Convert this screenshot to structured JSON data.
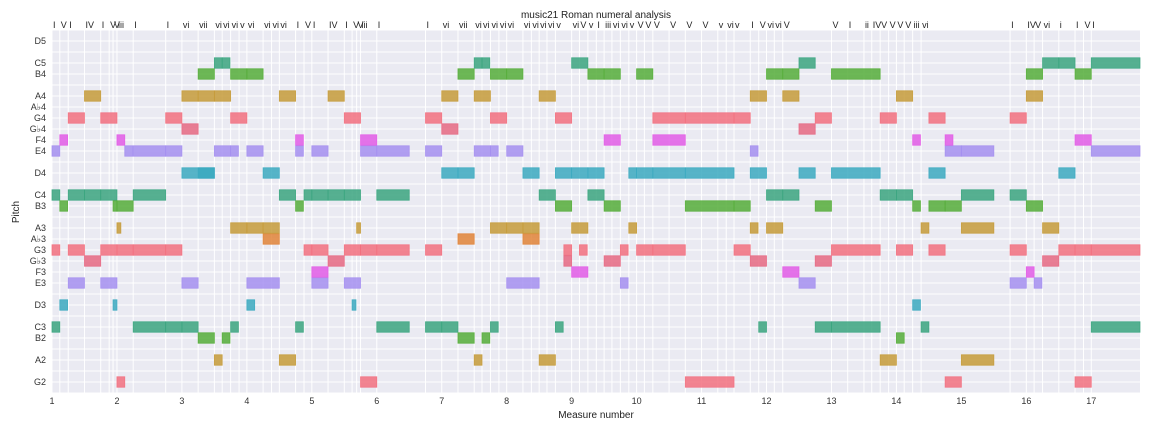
{
  "chart_data": {
    "type": "piano-roll",
    "title": "music21 Roman numeral analysis",
    "xlabel": "Measure number",
    "ylabel": "Pitch",
    "xlim": [
      1,
      17.75
    ],
    "x_ticks": [
      1,
      2,
      3,
      4,
      5,
      6,
      7,
      8,
      9,
      10,
      11,
      12,
      13,
      14,
      15,
      16,
      17
    ],
    "y_ticks": [
      {
        "label": "G2",
        "midi": 43
      },
      {
        "label": "A2",
        "midi": 45
      },
      {
        "label": "B2",
        "midi": 47
      },
      {
        "label": "C3",
        "midi": 48
      },
      {
        "label": "D3",
        "midi": 50
      },
      {
        "label": "E3",
        "midi": 52
      },
      {
        "label": "F3",
        "midi": 53
      },
      {
        "label": "G♭3",
        "midi": 54
      },
      {
        "label": "G3",
        "midi": 55
      },
      {
        "label": "A♭3",
        "midi": 56
      },
      {
        "label": "A3",
        "midi": 57
      },
      {
        "label": "B3",
        "midi": 59
      },
      {
        "label": "C4",
        "midi": 60
      },
      {
        "label": "D4",
        "midi": 62
      },
      {
        "label": "E4",
        "midi": 64
      },
      {
        "label": "F4",
        "midi": 65
      },
      {
        "label": "G♭4",
        "midi": 66
      },
      {
        "label": "G4",
        "midi": 67
      },
      {
        "label": "A♭4",
        "midi": 68
      },
      {
        "label": "A4",
        "midi": 69
      },
      {
        "label": "B4",
        "midi": 71
      },
      {
        "label": "C5",
        "midi": 72
      },
      {
        "label": "D5",
        "midi": 74
      }
    ],
    "ylim": [
      42,
      75
    ],
    "pitch_colors": {
      "0": "#3ba57f",
      "2": "#3ba9c0",
      "4": "#a48ff0",
      "5": "#e25ce6",
      "6": "#e66883",
      "7": "#f2707f",
      "8": "#e18438",
      "9": "#c59b3a",
      "11": "#55ad3a"
    },
    "roman_numerals": [
      {
        "x": 1.0,
        "label": "I"
      },
      {
        "x": 1.12,
        "label": "V"
      },
      {
        "x": 1.25,
        "label": "I"
      },
      {
        "x": 1.5,
        "label": "IV"
      },
      {
        "x": 1.75,
        "label": "I"
      },
      {
        "x": 1.88,
        "label": "V"
      },
      {
        "x": 1.94,
        "label": "V"
      },
      {
        "x": 2.0,
        "label": "iii"
      },
      {
        "x": 2.25,
        "label": "I"
      },
      {
        "x": 2.75,
        "label": "I"
      },
      {
        "x": 3.0,
        "label": "vi"
      },
      {
        "x": 3.25,
        "label": "vii"
      },
      {
        "x": 3.5,
        "label": "vi"
      },
      {
        "x": 3.62,
        "label": "vi"
      },
      {
        "x": 3.75,
        "label": "vi"
      },
      {
        "x": 3.88,
        "label": "v"
      },
      {
        "x": 4.0,
        "label": "vi"
      },
      {
        "x": 4.25,
        "label": "vi"
      },
      {
        "x": 4.38,
        "label": "vi"
      },
      {
        "x": 4.5,
        "label": "vi"
      },
      {
        "x": 4.75,
        "label": "I"
      },
      {
        "x": 4.88,
        "label": "V"
      },
      {
        "x": 5.0,
        "label": "I"
      },
      {
        "x": 5.25,
        "label": "IV"
      },
      {
        "x": 5.5,
        "label": "I"
      },
      {
        "x": 5.62,
        "label": "V"
      },
      {
        "x": 5.69,
        "label": "V"
      },
      {
        "x": 5.75,
        "label": "iii"
      },
      {
        "x": 6.0,
        "label": "I"
      },
      {
        "x": 6.75,
        "label": "I"
      },
      {
        "x": 7.0,
        "label": "vi"
      },
      {
        "x": 7.25,
        "label": "vii"
      },
      {
        "x": 7.5,
        "label": "vi"
      },
      {
        "x": 7.62,
        "label": "vi"
      },
      {
        "x": 7.75,
        "label": "vi"
      },
      {
        "x": 7.88,
        "label": "vi"
      },
      {
        "x": 8.0,
        "label": "vi"
      },
      {
        "x": 8.25,
        "label": "vi"
      },
      {
        "x": 8.38,
        "label": "vi"
      },
      {
        "x": 8.5,
        "label": "vi"
      },
      {
        "x": 8.62,
        "label": "vi"
      },
      {
        "x": 8.75,
        "label": "v"
      },
      {
        "x": 9.0,
        "label": "vi"
      },
      {
        "x": 9.12,
        "label": "V"
      },
      {
        "x": 9.25,
        "label": "v"
      },
      {
        "x": 9.38,
        "label": "I"
      },
      {
        "x": 9.5,
        "label": "iii"
      },
      {
        "x": 9.62,
        "label": "vi"
      },
      {
        "x": 9.75,
        "label": "vi"
      },
      {
        "x": 9.88,
        "label": "v"
      },
      {
        "x": 10.0,
        "label": "V"
      },
      {
        "x": 10.12,
        "label": "V"
      },
      {
        "x": 10.25,
        "label": "V"
      },
      {
        "x": 10.5,
        "label": "V"
      },
      {
        "x": 10.75,
        "label": "V"
      },
      {
        "x": 11.0,
        "label": "V"
      },
      {
        "x": 11.25,
        "label": "v"
      },
      {
        "x": 11.38,
        "label": "vi"
      },
      {
        "x": 11.5,
        "label": "v"
      },
      {
        "x": 11.75,
        "label": "I"
      },
      {
        "x": 11.88,
        "label": "V"
      },
      {
        "x": 12.0,
        "label": "vi"
      },
      {
        "x": 12.12,
        "label": "vi"
      },
      {
        "x": 12.25,
        "label": "V"
      },
      {
        "x": 13.0,
        "label": "V"
      },
      {
        "x": 13.25,
        "label": "I"
      },
      {
        "x": 13.5,
        "label": "ii"
      },
      {
        "x": 13.62,
        "label": "IV"
      },
      {
        "x": 13.75,
        "label": "V"
      },
      {
        "x": 13.88,
        "label": "V"
      },
      {
        "x": 14.0,
        "label": "V"
      },
      {
        "x": 14.12,
        "label": "V"
      },
      {
        "x": 14.25,
        "label": "iii"
      },
      {
        "x": 14.38,
        "label": "vi"
      },
      {
        "x": 15.75,
        "label": "I"
      },
      {
        "x": 16.0,
        "label": "IV"
      },
      {
        "x": 16.12,
        "label": "V"
      },
      {
        "x": 16.25,
        "label": "vi"
      },
      {
        "x": 16.5,
        "label": "i"
      },
      {
        "x": 16.75,
        "label": "I"
      },
      {
        "x": 16.88,
        "label": "V"
      },
      {
        "x": 17.0,
        "label": "I"
      }
    ],
    "notes": [
      [
        1.0,
        0.12,
        60
      ],
      [
        1.0,
        0.12,
        48
      ],
      [
        1.0,
        0.12,
        55
      ],
      [
        1.0,
        0.12,
        64
      ],
      [
        1.12,
        0.12,
        50
      ],
      [
        1.12,
        0.12,
        59
      ],
      [
        1.12,
        0.12,
        65
      ],
      [
        1.25,
        0.25,
        52
      ],
      [
        1.25,
        0.25,
        60
      ],
      [
        1.25,
        0.25,
        67
      ],
      [
        1.25,
        0.25,
        55
      ],
      [
        1.5,
        0.25,
        54
      ],
      [
        1.5,
        0.25,
        60
      ],
      [
        1.5,
        0.25,
        69
      ],
      [
        1.75,
        0.25,
        52
      ],
      [
        1.75,
        0.25,
        60
      ],
      [
        1.75,
        0.25,
        67
      ],
      [
        1.75,
        0.25,
        55
      ],
      [
        1.94,
        0.06,
        50
      ],
      [
        1.94,
        0.06,
        59
      ],
      [
        2.0,
        0.06,
        57
      ],
      [
        2.0,
        0.12,
        65
      ],
      [
        2.0,
        0.12,
        43
      ],
      [
        2.0,
        0.25,
        55
      ],
      [
        2.0,
        0.25,
        59
      ],
      [
        2.12,
        0.12,
        64
      ],
      [
        2.25,
        0.5,
        48
      ],
      [
        2.25,
        0.5,
        55
      ],
      [
        2.25,
        0.5,
        60
      ],
      [
        2.25,
        0.5,
        64
      ],
      [
        2.75,
        0.25,
        48
      ],
      [
        2.75,
        0.25,
        55
      ],
      [
        2.75,
        0.25,
        64
      ],
      [
        2.75,
        0.25,
        67
      ],
      [
        3.0,
        0.25,
        48
      ],
      [
        3.0,
        0.25,
        52
      ],
      [
        3.0,
        0.5,
        62
      ],
      [
        3.0,
        0.25,
        69
      ],
      [
        3.0,
        0.25,
        66
      ],
      [
        3.25,
        0.25,
        47
      ],
      [
        3.25,
        0.25,
        62
      ],
      [
        3.25,
        0.25,
        69
      ],
      [
        3.25,
        0.25,
        71
      ],
      [
        3.5,
        0.12,
        45
      ],
      [
        3.5,
        0.25,
        64
      ],
      [
        3.5,
        0.25,
        69
      ],
      [
        3.5,
        0.12,
        72
      ],
      [
        3.62,
        0.12,
        47
      ],
      [
        3.62,
        0.12,
        72
      ],
      [
        3.75,
        0.12,
        64
      ],
      [
        3.75,
        0.25,
        57
      ],
      [
        3.75,
        0.25,
        67
      ],
      [
        3.75,
        0.25,
        71
      ],
      [
        3.75,
        0.12,
        48
      ],
      [
        4.0,
        0.12,
        50
      ],
      [
        4.0,
        0.25,
        57
      ],
      [
        4.0,
        0.5,
        52
      ],
      [
        4.0,
        0.25,
        64
      ],
      [
        4.0,
        0.25,
        71
      ],
      [
        4.25,
        0.25,
        56
      ],
      [
        4.25,
        0.25,
        57
      ],
      [
        4.25,
        0.25,
        62
      ],
      [
        4.5,
        0.25,
        45
      ],
      [
        4.5,
        0.25,
        60
      ],
      [
        4.5,
        0.25,
        69
      ],
      [
        4.75,
        0.12,
        48
      ],
      [
        4.75,
        0.12,
        59
      ],
      [
        4.75,
        0.12,
        64
      ],
      [
        4.75,
        0.12,
        65
      ],
      [
        4.88,
        0.12,
        60
      ],
      [
        4.88,
        0.12,
        55
      ],
      [
        5.0,
        0.25,
        52
      ],
      [
        5.0,
        0.25,
        55
      ],
      [
        5.0,
        0.25,
        60
      ],
      [
        5.0,
        0.25,
        64
      ],
      [
        5.0,
        0.25,
        53
      ],
      [
        5.25,
        0.25,
        54
      ],
      [
        5.25,
        0.25,
        60
      ],
      [
        5.25,
        0.25,
        69
      ],
      [
        5.5,
        0.25,
        52
      ],
      [
        5.5,
        0.25,
        60
      ],
      [
        5.5,
        0.25,
        67
      ],
      [
        5.5,
        0.25,
        55
      ],
      [
        5.62,
        0.06,
        50
      ],
      [
        5.69,
        0.06,
        57
      ],
      [
        5.75,
        0.25,
        55
      ],
      [
        5.75,
        0.25,
        64
      ],
      [
        5.75,
        0.25,
        65
      ],
      [
        5.75,
        0.25,
        43
      ],
      [
        6.0,
        0.5,
        48
      ],
      [
        6.0,
        0.5,
        55
      ],
      [
        6.0,
        0.5,
        60
      ],
      [
        6.0,
        0.5,
        64
      ],
      [
        6.75,
        0.25,
        48
      ],
      [
        6.75,
        0.25,
        55
      ],
      [
        6.75,
        0.25,
        64
      ],
      [
        6.75,
        0.25,
        67
      ],
      [
        7.0,
        0.25,
        48
      ],
      [
        7.0,
        0.25,
        62
      ],
      [
        7.0,
        0.25,
        69
      ],
      [
        7.0,
        0.25,
        66
      ],
      [
        7.25,
        0.25,
        47
      ],
      [
        7.25,
        0.25,
        62
      ],
      [
        7.25,
        0.25,
        71
      ],
      [
        7.25,
        0.25,
        56
      ],
      [
        7.5,
        0.12,
        45
      ],
      [
        7.5,
        0.25,
        64
      ],
      [
        7.5,
        0.25,
        69
      ],
      [
        7.5,
        0.12,
        72
      ],
      [
        7.62,
        0.12,
        47
      ],
      [
        7.62,
        0.12,
        72
      ],
      [
        7.75,
        0.12,
        64
      ],
      [
        7.75,
        0.25,
        57
      ],
      [
        7.75,
        0.12,
        48
      ],
      [
        7.75,
        0.25,
        67
      ],
      [
        7.75,
        0.25,
        71
      ],
      [
        8.0,
        0.5,
        52
      ],
      [
        8.0,
        0.25,
        57
      ],
      [
        8.0,
        0.25,
        64
      ],
      [
        8.0,
        0.25,
        71
      ],
      [
        8.25,
        0.25,
        56
      ],
      [
        8.25,
        0.25,
        57
      ],
      [
        8.25,
        0.25,
        62
      ],
      [
        8.5,
        0.25,
        45
      ],
      [
        8.5,
        0.25,
        60
      ],
      [
        8.5,
        0.25,
        69
      ],
      [
        8.75,
        0.12,
        48
      ],
      [
        8.75,
        0.25,
        59
      ],
      [
        8.75,
        0.25,
        62
      ],
      [
        8.75,
        0.25,
        67
      ],
      [
        8.88,
        0.12,
        55
      ],
      [
        8.88,
        0.12,
        54
      ],
      [
        9.0,
        0.25,
        53
      ],
      [
        9.0,
        0.25,
        57
      ],
      [
        9.0,
        0.25,
        62
      ],
      [
        9.0,
        0.25,
        72
      ],
      [
        9.12,
        0.12,
        55
      ],
      [
        9.25,
        0.25,
        60
      ],
      [
        9.25,
        0.25,
        62
      ],
      [
        9.25,
        0.25,
        71
      ],
      [
        9.5,
        0.25,
        54
      ],
      [
        9.5,
        0.25,
        59
      ],
      [
        9.5,
        0.25,
        65
      ],
      [
        9.5,
        0.25,
        71
      ],
      [
        9.75,
        0.12,
        55
      ],
      [
        9.75,
        0.12,
        52
      ],
      [
        9.88,
        0.12,
        57
      ],
      [
        9.88,
        0.12,
        62
      ],
      [
        10.0,
        0.25,
        55
      ],
      [
        10.0,
        0.25,
        62
      ],
      [
        10.0,
        0.25,
        71
      ],
      [
        10.25,
        0.5,
        55
      ],
      [
        10.25,
        0.5,
        62
      ],
      [
        10.25,
        0.5,
        65
      ],
      [
        10.25,
        0.5,
        67
      ],
      [
        10.75,
        0.75,
        43
      ],
      [
        10.75,
        0.75,
        59
      ],
      [
        10.75,
        0.75,
        62
      ],
      [
        10.75,
        0.75,
        67
      ],
      [
        11.5,
        0.25,
        55
      ],
      [
        11.5,
        0.25,
        59
      ],
      [
        11.5,
        0.25,
        67
      ],
      [
        11.75,
        0.12,
        57
      ],
      [
        11.75,
        0.25,
        54
      ],
      [
        11.75,
        0.25,
        62
      ],
      [
        11.75,
        0.25,
        69
      ],
      [
        11.75,
        0.12,
        64
      ],
      [
        11.88,
        0.12,
        48
      ],
      [
        12.0,
        0.25,
        57
      ],
      [
        12.0,
        0.25,
        60
      ],
      [
        12.0,
        0.25,
        71
      ],
      [
        12.25,
        0.25,
        53
      ],
      [
        12.25,
        0.25,
        60
      ],
      [
        12.25,
        0.25,
        69
      ],
      [
        12.25,
        0.25,
        71
      ],
      [
        12.5,
        0.25,
        52
      ],
      [
        12.5,
        0.25,
        62
      ],
      [
        12.5,
        0.25,
        72
      ],
      [
        12.5,
        0.25,
        66
      ],
      [
        12.75,
        0.25,
        48
      ],
      [
        12.75,
        0.25,
        54
      ],
      [
        12.75,
        0.25,
        59
      ],
      [
        12.75,
        0.25,
        67
      ],
      [
        13.0,
        0.75,
        48
      ],
      [
        13.0,
        0.75,
        55
      ],
      [
        13.0,
        0.75,
        62
      ],
      [
        13.0,
        0.75,
        71
      ],
      [
        13.75,
        0.25,
        45
      ],
      [
        13.75,
        0.25,
        60
      ],
      [
        13.75,
        0.25,
        67
      ],
      [
        14.0,
        0.12,
        47
      ],
      [
        14.0,
        0.25,
        55
      ],
      [
        14.0,
        0.25,
        60
      ],
      [
        14.0,
        0.25,
        69
      ],
      [
        14.25,
        0.12,
        50
      ],
      [
        14.25,
        0.12,
        59
      ],
      [
        14.25,
        0.12,
        65
      ],
      [
        14.38,
        0.12,
        48
      ],
      [
        14.38,
        0.12,
        57
      ],
      [
        14.5,
        0.25,
        55
      ],
      [
        14.5,
        0.25,
        59
      ],
      [
        14.5,
        0.25,
        62
      ],
      [
        14.5,
        0.25,
        67
      ],
      [
        14.75,
        0.25,
        43
      ],
      [
        14.75,
        0.25,
        59
      ],
      [
        14.75,
        0.25,
        64
      ],
      [
        14.75,
        0.12,
        65
      ],
      [
        15.0,
        0.5,
        45
      ],
      [
        15.0,
        0.5,
        57
      ],
      [
        15.0,
        0.5,
        60
      ],
      [
        15.0,
        0.5,
        64
      ],
      [
        15.75,
        0.25,
        52
      ],
      [
        15.75,
        0.25,
        55
      ],
      [
        15.75,
        0.25,
        60
      ],
      [
        15.75,
        0.25,
        67
      ],
      [
        16.0,
        0.12,
        53
      ],
      [
        16.0,
        0.25,
        59
      ],
      [
        16.0,
        0.25,
        69
      ],
      [
        16.0,
        0.25,
        71
      ],
      [
        16.12,
        0.12,
        52
      ],
      [
        16.25,
        0.25,
        54
      ],
      [
        16.25,
        0.25,
        57
      ],
      [
        16.25,
        0.25,
        72
      ],
      [
        16.5,
        0.25,
        55
      ],
      [
        16.5,
        0.25,
        62
      ],
      [
        16.5,
        0.25,
        72
      ],
      [
        16.75,
        0.25,
        43
      ],
      [
        16.75,
        0.25,
        55
      ],
      [
        16.75,
        0.25,
        65
      ],
      [
        16.75,
        0.25,
        71
      ],
      [
        17.0,
        0.75,
        48
      ],
      [
        17.0,
        0.75,
        55
      ],
      [
        17.0,
        0.75,
        64
      ],
      [
        17.0,
        0.75,
        72
      ]
    ]
  }
}
